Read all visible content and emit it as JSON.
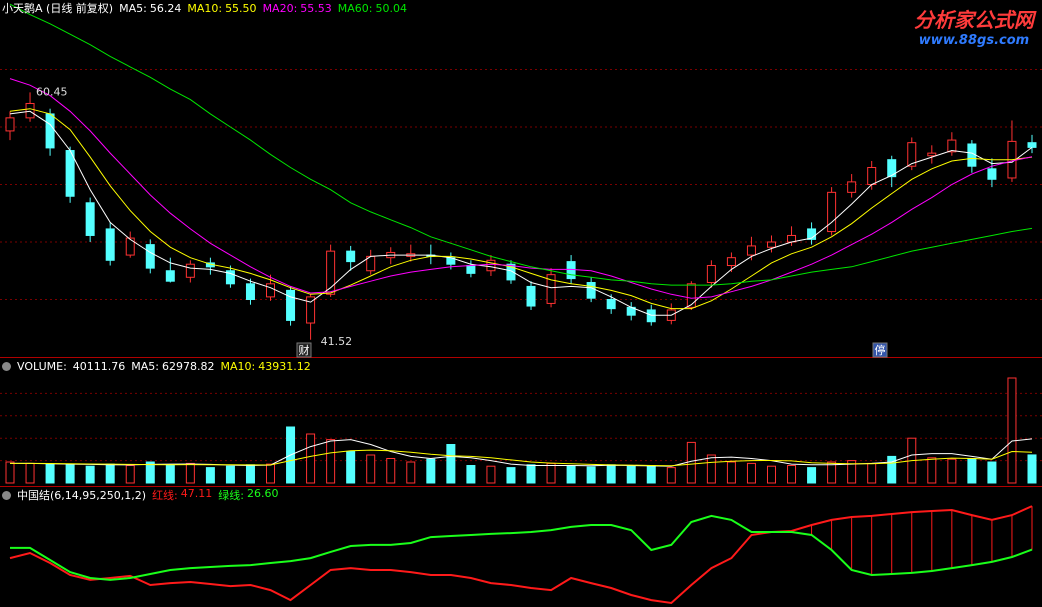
{
  "chart_data": [
    {
      "type": "candlestick",
      "title": "小天鹅A (日线 前复权)",
      "open": [
        57.5,
        58.5,
        58.8,
        56.0,
        52.0,
        50.0,
        48.0,
        48.8,
        46.8,
        46.3,
        47.4,
        46.8,
        45.8,
        44.8,
        45.3,
        42.8,
        45.0,
        48.3,
        46.8,
        47.8,
        47.9,
        48.0,
        47.8,
        47.2,
        46.8,
        47.3,
        45.6,
        44.3,
        47.5,
        45.9,
        44.6,
        44.0,
        43.8,
        43.0,
        44.0,
        45.9,
        47.2,
        48.0,
        48.6,
        49.0,
        50.0,
        49.8,
        52.8,
        53.4,
        55.3,
        54.8,
        55.6,
        55.9,
        56.5,
        54.6,
        53.9,
        56.6
      ],
      "high": [
        59.0,
        60.45,
        59.2,
        56.3,
        52.4,
        50.5,
        49.8,
        49.2,
        47.8,
        47.6,
        47.8,
        47.2,
        46.2,
        46.5,
        45.6,
        45.0,
        48.8,
        48.7,
        48.4,
        48.6,
        48.8,
        48.8,
        48.2,
        47.6,
        48.0,
        47.6,
        46.0,
        47.0,
        48.0,
        46.3,
        45.0,
        44.4,
        44.2,
        44.3,
        46.0,
        47.6,
        48.2,
        49.4,
        49.5,
        50.2,
        50.5,
        53.2,
        54.2,
        55.2,
        55.6,
        57.0,
        56.4,
        57.4,
        56.8,
        55.4,
        58.3,
        57.2
      ],
      "low": [
        56.8,
        58.2,
        55.6,
        52.0,
        49.0,
        47.2,
        47.8,
        46.6,
        45.9,
        45.9,
        46.5,
        45.5,
        44.2,
        44.5,
        42.6,
        41.52,
        44.8,
        46.8,
        46.5,
        47.3,
        47.5,
        47.3,
        46.9,
        46.3,
        46.4,
        45.8,
        43.8,
        44.0,
        45.8,
        44.4,
        43.5,
        43.0,
        42.6,
        42.7,
        43.8,
        45.5,
        46.7,
        47.6,
        48.2,
        48.7,
        48.8,
        49.5,
        52.4,
        53.0,
        53.2,
        54.5,
        55.0,
        55.6,
        54.3,
        53.2,
        53.6,
        55.8
      ],
      "close": [
        58.5,
        59.6,
        56.2,
        52.5,
        49.5,
        47.6,
        49.3,
        47.0,
        46.0,
        47.3,
        47.1,
        45.8,
        44.6,
        45.8,
        43.0,
        44.8,
        48.3,
        47.5,
        47.9,
        48.2,
        48.1,
        47.9,
        47.3,
        46.6,
        47.6,
        46.1,
        44.1,
        46.5,
        46.2,
        44.7,
        43.9,
        43.4,
        42.9,
        43.8,
        45.8,
        47.2,
        47.8,
        48.7,
        49.0,
        49.5,
        49.2,
        52.8,
        53.6,
        54.7,
        54.0,
        56.6,
        55.8,
        56.8,
        54.8,
        53.8,
        56.7,
        56.24
      ],
      "up_color": "#ff3232",
      "down_color": "#54ffff",
      "series": [
        {
          "name": "MA5:",
          "color": "#ffffff",
          "values": [
            58.8,
            59.0,
            58.0,
            56.0,
            53.0,
            50.5,
            49.2,
            48.2,
            47.4,
            47.0,
            46.9,
            46.6,
            46.0,
            45.5,
            44.8,
            44.4,
            45.5,
            46.9,
            47.9,
            48.0,
            48.0,
            48.0,
            47.8,
            47.3,
            47.1,
            46.8,
            45.9,
            45.5,
            45.6,
            45.5,
            44.8,
            44.0,
            43.4,
            43.4,
            44.2,
            45.6,
            46.9,
            47.9,
            48.5,
            49.0,
            49.3,
            50.5,
            51.9,
            53.4,
            54.1,
            55.0,
            55.5,
            56.0,
            55.8,
            55.0,
            55.1,
            56.24
          ]
        },
        {
          "name": "MA10:",
          "color": "#ffff00",
          "values": [
            59.0,
            59.2,
            58.8,
            57.6,
            55.5,
            53.3,
            51.4,
            49.8,
            48.6,
            47.8,
            47.3,
            47.0,
            46.6,
            46.1,
            45.5,
            45.0,
            45.1,
            45.7,
            46.4,
            47.1,
            47.6,
            47.9,
            47.9,
            47.7,
            47.4,
            47.1,
            46.6,
            46.1,
            45.8,
            45.6,
            45.3,
            44.9,
            44.3,
            43.9,
            43.9,
            44.5,
            45.4,
            46.4,
            47.4,
            48.1,
            48.6,
            49.4,
            50.4,
            51.6,
            52.7,
            53.8,
            54.6,
            55.2,
            55.4,
            55.3,
            55.3,
            55.5
          ],
          "value_labels": [
            null,
            null,
            null,
            null,
            null,
            null,
            null,
            null,
            null,
            null,
            null,
            null,
            null,
            null,
            null,
            null,
            null,
            null,
            null,
            null,
            null,
            null,
            null,
            null,
            null,
            null,
            null,
            null,
            null,
            null,
            null,
            null,
            null,
            null,
            null,
            null,
            null,
            null,
            null,
            null,
            null,
            null,
            null,
            null,
            null,
            null,
            null,
            null,
            null,
            null,
            null,
            "55.50"
          ]
        },
        {
          "name": "MA20:",
          "color": "#ff00ff",
          "values": [
            61.5,
            61.0,
            60.2,
            59.0,
            57.5,
            55.8,
            54.2,
            52.6,
            51.2,
            50.0,
            48.9,
            48.0,
            47.1,
            46.3,
            45.6,
            45.1,
            45.2,
            45.6,
            46.0,
            46.4,
            46.7,
            46.9,
            47.1,
            47.2,
            47.3,
            47.2,
            47.0,
            46.9,
            46.9,
            46.8,
            46.4,
            45.9,
            45.4,
            45.0,
            44.7,
            44.8,
            45.2,
            45.6,
            46.1,
            46.7,
            47.3,
            48.0,
            48.8,
            49.6,
            50.5,
            51.5,
            52.4,
            53.4,
            54.2,
            54.8,
            55.2,
            55.53
          ]
        },
        {
          "name": "MA60:",
          "color": "#00e600",
          "values": [
            67.2,
            66.4,
            65.7,
            64.9,
            64.1,
            63.2,
            62.4,
            61.6,
            60.7,
            59.9,
            58.8,
            57.8,
            56.8,
            55.7,
            54.7,
            53.8,
            53.0,
            52.0,
            51.3,
            50.7,
            50.1,
            49.4,
            48.9,
            48.4,
            47.9,
            47.5,
            47.1,
            46.8,
            46.5,
            46.3,
            46.1,
            46.0,
            45.8,
            45.7,
            45.7,
            45.7,
            45.8,
            46.0,
            46.1,
            46.4,
            46.7,
            46.9,
            47.1,
            47.5,
            47.9,
            48.3,
            48.6,
            48.9,
            49.2,
            49.5,
            49.8,
            50.04
          ]
        }
      ],
      "ylim": [
        40.2,
        66.6
      ],
      "grid": true,
      "high_label": "60.45",
      "low_label": "41.52",
      "markers": [
        "财",
        "停"
      ]
    },
    {
      "type": "bar",
      "title": "VOLUME:",
      "values": [
        30000,
        28000,
        27000,
        26000,
        24000,
        27000,
        25000,
        30000,
        26000,
        28000,
        22000,
        24000,
        26000,
        27000,
        80000,
        70000,
        62000,
        45000,
        40000,
        35000,
        30000,
        34000,
        55000,
        25000,
        24000,
        22000,
        26000,
        28000,
        24000,
        23000,
        26000,
        24000,
        25000,
        22000,
        58000,
        40000,
        30000,
        28000,
        24000,
        25000,
        22000,
        30000,
        32000,
        28000,
        38000,
        64000,
        36000,
        34000,
        35000,
        30000,
        150000,
        40111.76
      ],
      "series": [
        {
          "name": "MA5:",
          "color": "#ffffff",
          "values": [
            28000,
            28000,
            27500,
            27000,
            26500,
            26000,
            25800,
            26500,
            27000,
            27200,
            26500,
            25500,
            25000,
            25500,
            40000,
            52000,
            60000,
            62000,
            55000,
            45000,
            38000,
            35000,
            38000,
            36000,
            32000,
            27000,
            25000,
            25000,
            25000,
            24600,
            25400,
            25000,
            24400,
            24000,
            31000,
            36000,
            37000,
            35000,
            32000,
            27000,
            26000,
            26000,
            27000,
            28000,
            30000,
            40000,
            42000,
            42000,
            38000,
            34000,
            60000,
            62978.82
          ]
        },
        {
          "name": "MA10:",
          "color": "#ffff00",
          "values": [
            28000,
            28000,
            27800,
            27500,
            27200,
            27000,
            26500,
            26300,
            26200,
            26300,
            26200,
            26000,
            25800,
            25700,
            32000,
            38000,
            43000,
            46000,
            47000,
            46000,
            44000,
            41000,
            39000,
            38000,
            36000,
            33000,
            30000,
            28500,
            27500,
            26500,
            25800,
            25500,
            25000,
            24600,
            27000,
            29500,
            31000,
            32000,
            32200,
            31500,
            29000,
            28000,
            27500,
            27500,
            28500,
            32000,
            34000,
            35500,
            35000,
            34000,
            45000,
            43931.12
          ]
        }
      ],
      "ylim": [
        0,
        160000
      ],
      "grid": true
    },
    {
      "type": "line",
      "title": "中国结(6,14,95,250,1,2)",
      "series": [
        {
          "name": "红线:",
          "color": "#ff1a1a",
          "values": [
            22.6,
            25.0,
            20.3,
            14.6,
            12.3,
            13.2,
            14.2,
            9.9,
            10.8,
            11.3,
            10.4,
            9.4,
            9.9,
            7.5,
            2.8,
            9.9,
            17.0,
            17.9,
            17.0,
            17.0,
            16.0,
            14.6,
            14.6,
            13.2,
            10.8,
            9.9,
            8.5,
            7.5,
            13.2,
            10.8,
            8.5,
            5.2,
            2.8,
            1.4,
            9.9,
            17.9,
            22.6,
            33.5,
            34.9,
            35.4,
            38.2,
            40.6,
            42.0,
            42.5,
            43.4,
            44.3,
            44.8,
            45.3,
            42.9,
            40.6,
            42.9,
            47.11
          ]
        },
        {
          "name": "绿线:",
          "color": "#1aff1a",
          "values": [
            27.4,
            27.4,
            21.7,
            16.0,
            13.2,
            12.3,
            13.2,
            15.1,
            17.0,
            17.9,
            18.4,
            18.9,
            19.3,
            20.3,
            21.2,
            22.6,
            25.5,
            28.3,
            28.8,
            28.8,
            29.7,
            32.5,
            33.0,
            33.5,
            34.0,
            34.4,
            34.9,
            35.8,
            37.3,
            38.2,
            38.2,
            35.8,
            26.4,
            28.8,
            39.6,
            42.5,
            40.6,
            34.9,
            34.9,
            34.9,
            33.5,
            26.4,
            17.0,
            14.6,
            15.1,
            15.6,
            16.5,
            17.9,
            19.3,
            20.8,
            23.1,
            26.6
          ],
          "value_labels": [
            null,
            null,
            null,
            null,
            null,
            null,
            null,
            null,
            null,
            null,
            null,
            null,
            null,
            null,
            null,
            null,
            null,
            null,
            null,
            null,
            null,
            null,
            null,
            null,
            null,
            null,
            null,
            null,
            null,
            null,
            null,
            null,
            null,
            null,
            null,
            null,
            null,
            null,
            null,
            null,
            null,
            null,
            null,
            null,
            null,
            null,
            null,
            null,
            null,
            null,
            null,
            "26.60"
          ]
        }
      ],
      "ylim": [
        0,
        50
      ]
    }
  ],
  "watermark": {
    "site": "分析家公式网",
    "url": "www.88gs.com"
  }
}
